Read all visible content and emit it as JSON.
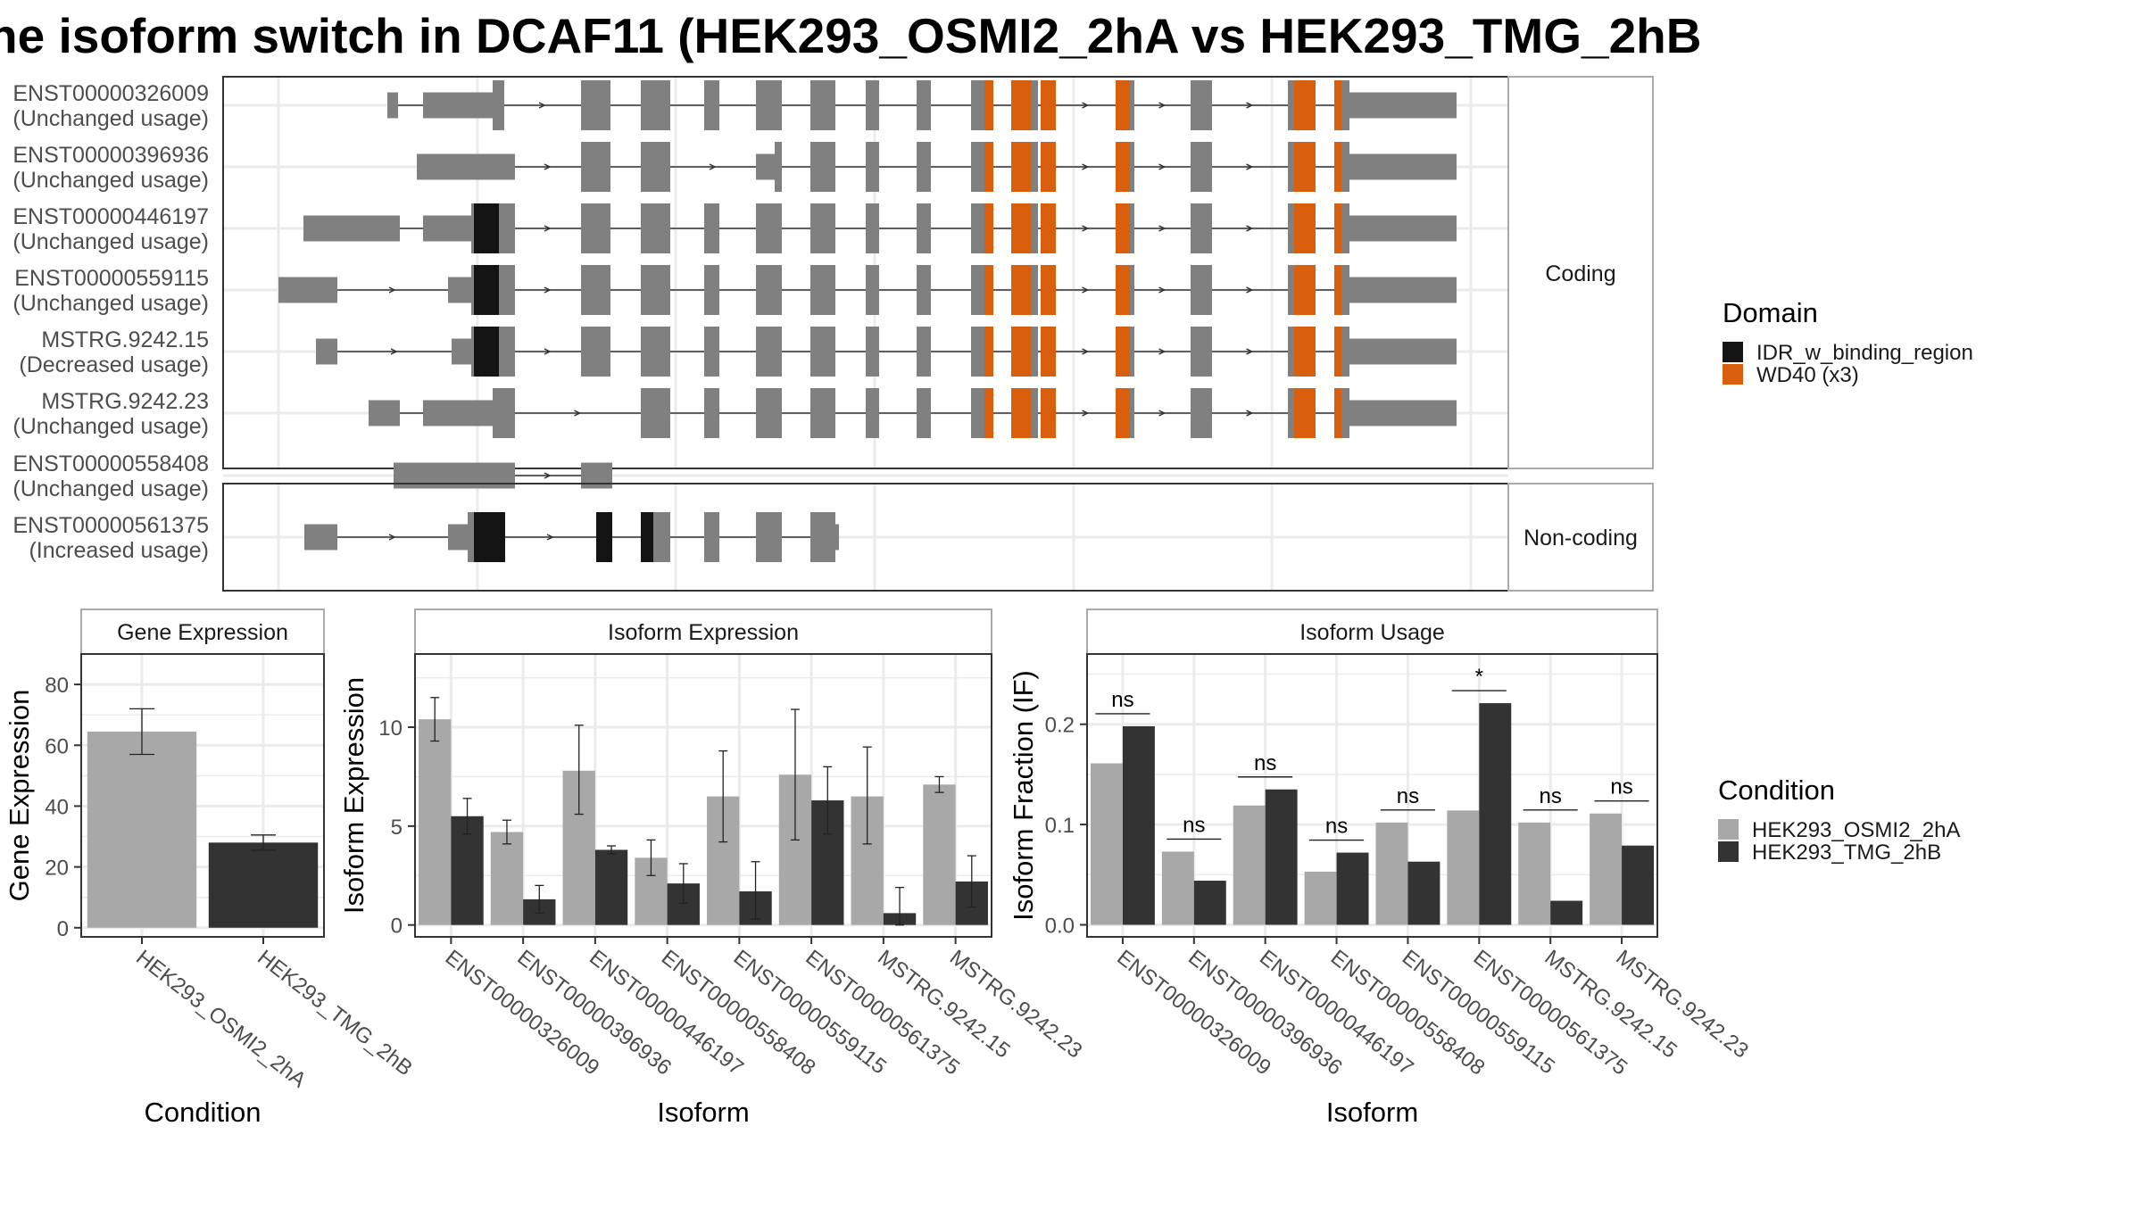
{
  "title": "he isoform switch in DCAF11 (HEK293_OSMI2_2hA vs HEK293_TMG_2hB",
  "colors": {
    "exon": "#808080",
    "idr": "#141414",
    "wd40": "#d95f0e",
    "cond_a": "#a8a8a8",
    "cond_b": "#333333",
    "grid": "#ebebeb",
    "panel_border": "#333333",
    "strip_border": "#aaaaaa"
  },
  "legends": {
    "domain": {
      "title": "Domain",
      "items": [
        {
          "label": "IDR_w_binding_region",
          "color": "#141414"
        },
        {
          "label": "WD40 (x3)",
          "color": "#d95f0e"
        }
      ]
    },
    "condition": {
      "title": "Condition",
      "items": [
        {
          "label": "HEK293_OSMI2_2hA",
          "color": "#a8a8a8"
        },
        {
          "label": "HEK293_TMG_2hB",
          "color": "#333333"
        }
      ]
    }
  },
  "chart_data": [
    {
      "type": "table",
      "subtype": "transcript-structure",
      "facets": [
        {
          "label": "Coding",
          "transcripts": [
            {
              "id": "ENST00000326009",
              "usage": "(Unchanged usage)"
            },
            {
              "id": "ENST00000396936",
              "usage": "(Unchanged usage)"
            },
            {
              "id": "ENST00000446197",
              "usage": "(Unchanged usage)"
            },
            {
              "id": "ENST00000559115",
              "usage": "(Unchanged usage)"
            },
            {
              "id": "MSTRG.9242.15",
              "usage": "(Decreased usage)"
            },
            {
              "id": "MSTRG.9242.23",
              "usage": "(Unchanged usage)"
            }
          ]
        },
        {
          "label": "Non-coding",
          "transcripts": [
            {
              "id": "ENST00000558408",
              "usage": "(Unchanged usage)"
            },
            {
              "id": "ENST00000561375",
              "usage": "(Increased usage)"
            }
          ]
        }
      ]
    },
    {
      "type": "bar",
      "strip": "Gene Expression",
      "xlabel": "Condition",
      "ylabel": "Gene Expression",
      "categories": [
        "HEK293_OSMI2_2hA",
        "HEK293_TMG_2hB"
      ],
      "values": [
        64.5,
        28
      ],
      "errors": [
        [
          57,
          72
        ],
        [
          25.5,
          30.5
        ]
      ],
      "ylim": [
        -3,
        90
      ],
      "yticks": [
        0,
        20,
        40,
        60,
        80
      ]
    },
    {
      "type": "bar",
      "strip": "Isoform Expression",
      "xlabel": "Isoform",
      "ylabel": "Isoform Expression",
      "categories": [
        "ENST00000326009",
        "ENST00000396936",
        "ENST00000446197",
        "ENST00000558408",
        "ENST00000559115",
        "ENST00000561375",
        "MSTRG.9242.15",
        "MSTRG.9242.23"
      ],
      "series": [
        {
          "name": "HEK293_OSMI2_2hA",
          "values": [
            10.4,
            4.7,
            7.8,
            3.4,
            6.5,
            7.6,
            6.5,
            7.1
          ],
          "errors": [
            [
              9.3,
              11.5
            ],
            [
              4.1,
              5.3
            ],
            [
              5.6,
              10.1
            ],
            [
              2.5,
              4.3
            ],
            [
              4.2,
              8.8
            ],
            [
              4.3,
              10.9
            ],
            [
              4.1,
              9.0
            ],
            [
              6.7,
              7.5
            ]
          ]
        },
        {
          "name": "HEK293_TMG_2hB",
          "values": [
            5.5,
            1.3,
            3.8,
            2.1,
            1.7,
            6.3,
            0.6,
            2.2
          ],
          "errors": [
            [
              4.6,
              6.4
            ],
            [
              0.6,
              2.0
            ],
            [
              3.6,
              4.0
            ],
            [
              1.1,
              3.1
            ],
            [
              0.3,
              3.2
            ],
            [
              4.6,
              8.0
            ],
            [
              0,
              1.9
            ],
            [
              0.9,
              3.5
            ]
          ]
        }
      ],
      "ylim": [
        -0.6,
        13.7
      ],
      "yticks": [
        0,
        5,
        10
      ]
    },
    {
      "type": "bar",
      "strip": "Isoform Usage",
      "xlabel": "Isoform",
      "ylabel": "Isoform Fraction (IF)",
      "categories": [
        "ENST00000326009",
        "ENST00000396936",
        "ENST00000446197",
        "ENST00000558408",
        "ENST00000559115",
        "ENST00000561375",
        "MSTRG.9242.15",
        "MSTRG.9242.23"
      ],
      "series": [
        {
          "name": "HEK293_OSMI2_2hA",
          "values": [
            0.161,
            0.073,
            0.119,
            0.053,
            0.102,
            0.114,
            0.102,
            0.111
          ]
        },
        {
          "name": "HEK293_TMG_2hB",
          "values": [
            0.198,
            0.044,
            0.135,
            0.072,
            0.063,
            0.221,
            0.024,
            0.079
          ]
        }
      ],
      "significance": [
        "ns",
        "ns",
        "ns",
        "ns",
        "ns",
        "*",
        "ns",
        "ns"
      ],
      "ylim": [
        -0.012,
        0.27
      ],
      "yticks": [
        0,
        0.1,
        0.2
      ],
      "ytick_labels": [
        "0.0",
        "0.1",
        "0.2"
      ]
    }
  ]
}
